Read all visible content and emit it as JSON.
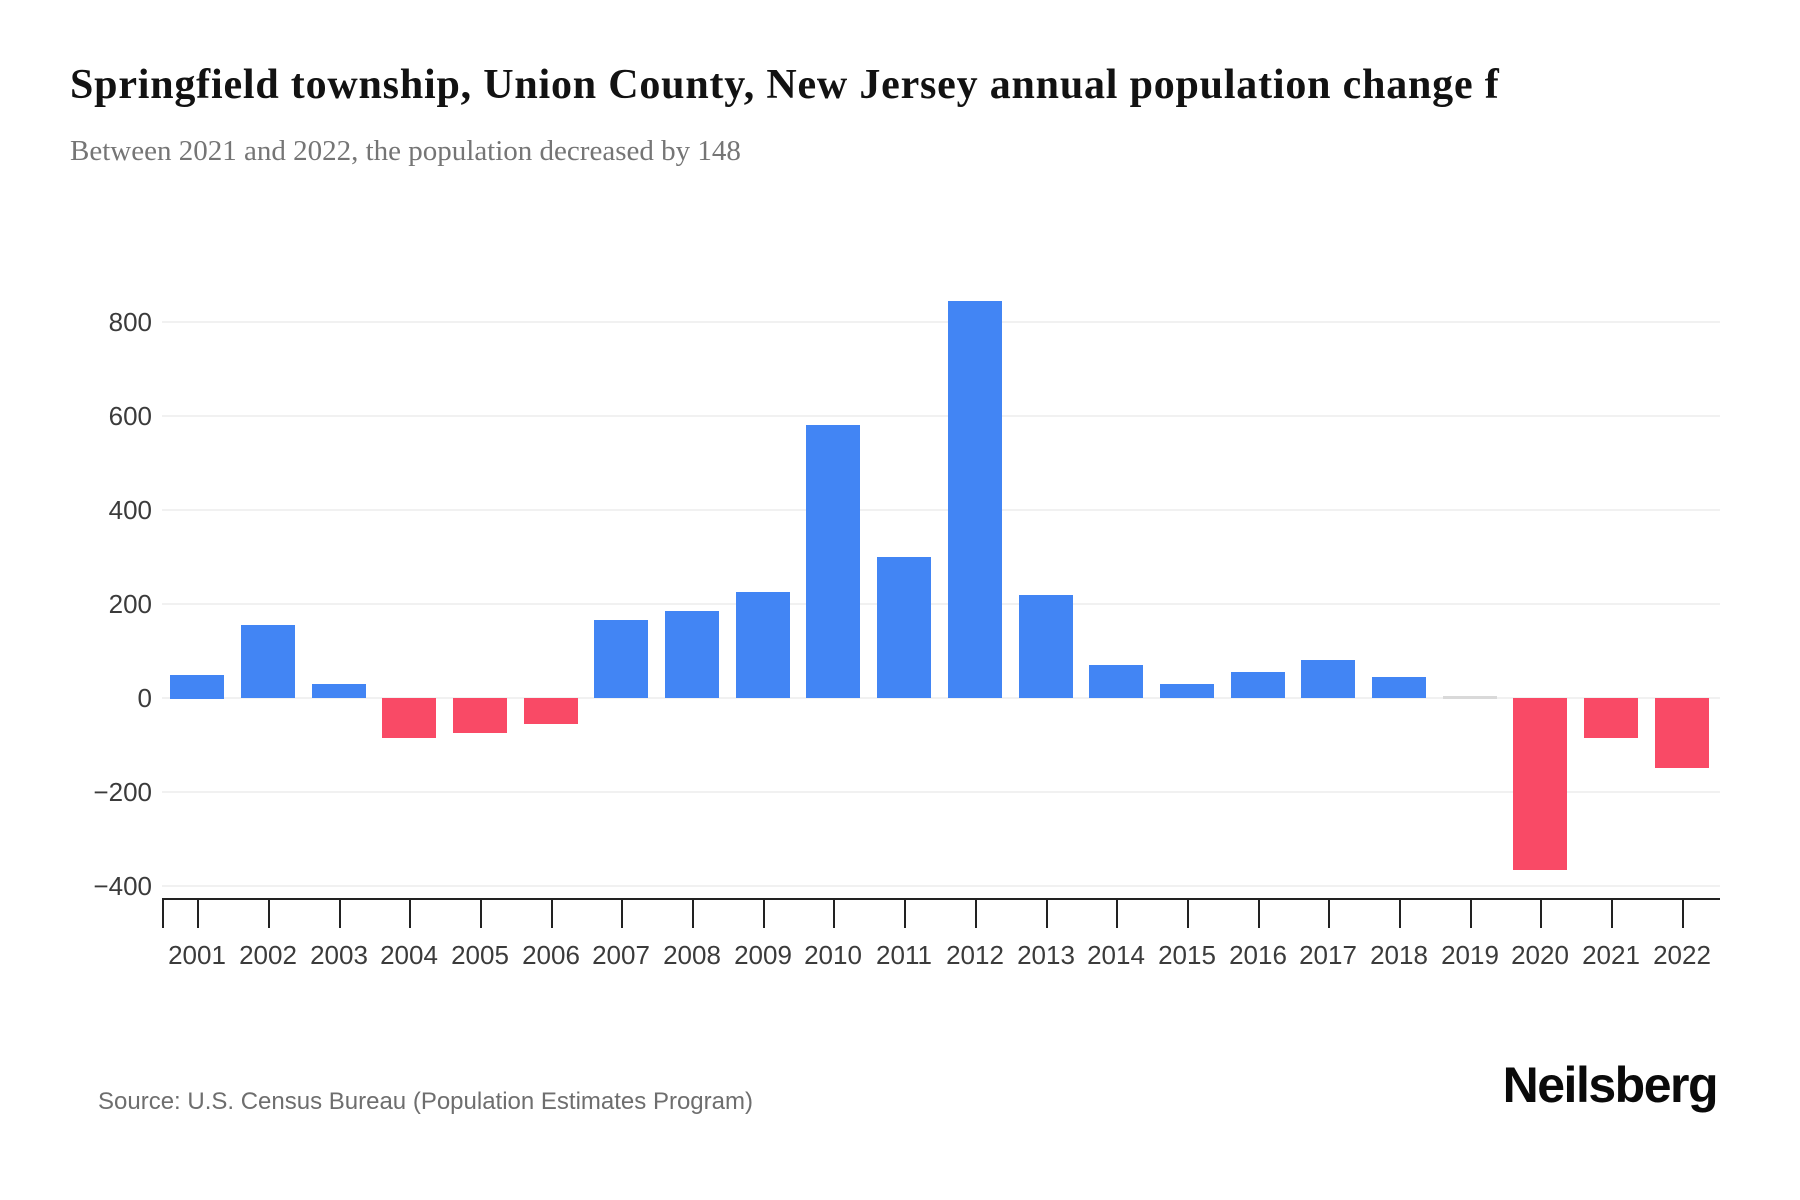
{
  "header": {
    "title": "Springfield township, Union County, New Jersey annual population change f",
    "subtitle": "Between 2021 and 2022, the population decreased by 148"
  },
  "chart_data": {
    "type": "bar",
    "title": "Springfield township, Union County, New Jersey annual population change f",
    "subtitle": "Between 2021 and 2022, the population decreased by 148",
    "categories": [
      "2001",
      "2002",
      "2003",
      "2004",
      "2005",
      "2006",
      "2007",
      "2008",
      "2009",
      "2010",
      "2011",
      "2012",
      "2013",
      "2014",
      "2015",
      "2016",
      "2017",
      "2018",
      "2019",
      "2020",
      "2021",
      "2022"
    ],
    "values": [
      50,
      155,
      30,
      -85,
      -75,
      -55,
      165,
      185,
      225,
      580,
      300,
      845,
      220,
      70,
      30,
      55,
      80,
      45,
      0,
      -365,
      -85,
      -148
    ],
    "xlabel": "",
    "ylabel": "",
    "ylim": [
      -400,
      870
    ],
    "yticks": [
      800,
      600,
      400,
      200,
      0,
      -200,
      -400
    ],
    "ytick_labels": [
      "800",
      "600",
      "400",
      "200",
      "0",
      "−200",
      "−400"
    ],
    "grid": "horizontal",
    "legend": "none",
    "colors": {
      "positive": "#4285F4",
      "negative": "#F94A66",
      "zero": "#D9D9D9",
      "gridline": "#F1F1F1",
      "axis": "#222222"
    }
  },
  "footer": {
    "source": "Source: U.S. Census Bureau (Population Estimates Program)",
    "brand": "Neilsberg"
  }
}
